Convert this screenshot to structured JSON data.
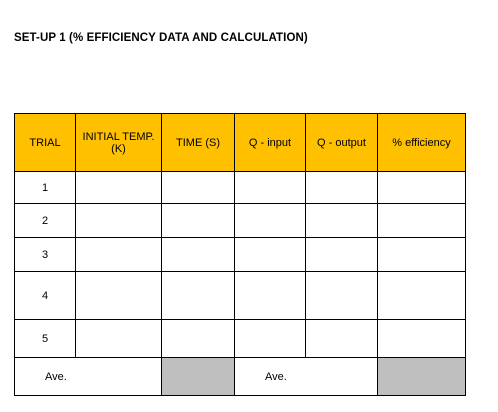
{
  "document": {
    "title": "SET-UP 1 (% EFFICIENCY DATA AND CALCULATION)"
  },
  "table": {
    "headers": {
      "trial": "TRIAL",
      "initial_temp_line1": "INITIAL TEMP.",
      "initial_temp_line2": "(K)",
      "time": "TIME (S)",
      "q_input": "Q - input",
      "q_output": "Q - output",
      "efficiency": "% efficiency"
    },
    "rows": [
      {
        "trial": "1"
      },
      {
        "trial": "2"
      },
      {
        "trial": "3"
      },
      {
        "trial": "4"
      },
      {
        "trial": "5"
      }
    ],
    "footer": {
      "ave_label_1": "Ave.",
      "ave_label_2": "Ave."
    },
    "colors": {
      "header_fill": "#ffc000",
      "shaded_cell": "#bfbfbf"
    }
  }
}
